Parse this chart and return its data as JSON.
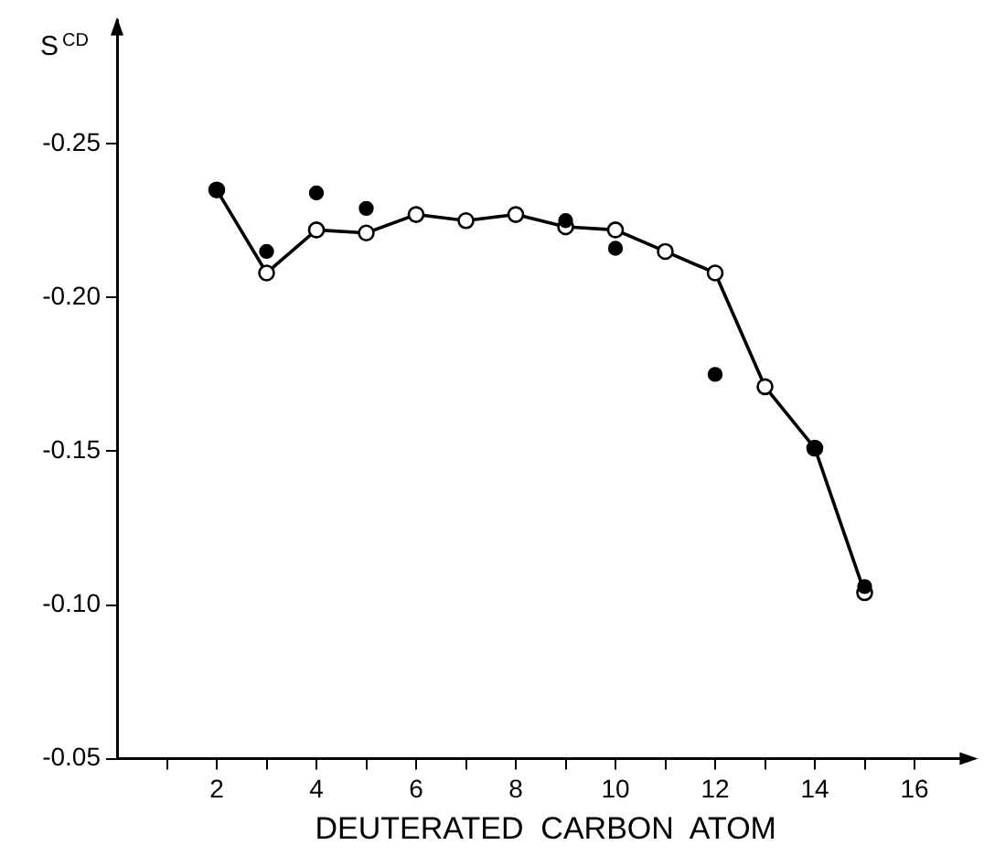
{
  "chart_data": {
    "type": "line",
    "xlabel": "DEUTERATED  CARBON  ATOM",
    "ylabel": "S$^{CD}$",
    "xlim": [
      0,
      17.2
    ],
    "xticks": [
      {
        "value": 1,
        "label": null
      },
      2,
      {
        "value": 3,
        "label": null
      },
      4,
      {
        "value": 5,
        "label": null
      },
      6,
      {
        "value": 7,
        "label": null
      },
      8,
      {
        "value": 9,
        "label": null
      },
      10,
      {
        "value": 11,
        "label": null
      },
      12,
      {
        "value": 13,
        "label": null
      },
      14,
      {
        "value": 15,
        "label": null
      },
      16
    ],
    "ylim": [
      -0.05,
      -0.29
    ],
    "yticks": [
      -0.25,
      {
        "value": -0.2,
        "label": "-0.20"
      },
      -0.15,
      {
        "value": -0.1,
        "label": "-0.10"
      },
      -0.05
    ],
    "grid": false,
    "legend": false,
    "marker": "circle",
    "line_style": "solid",
    "series": [
      {
        "type": "line",
        "color": "#000000",
        "x": [
          2,
          3,
          4,
          5,
          6,
          7,
          8,
          9,
          10,
          11,
          12,
          13,
          14,
          15
        ],
        "values": [
          -0.235,
          -0.208,
          -0.222,
          -0.221,
          -0.227,
          -0.225,
          -0.227,
          -0.223,
          -0.222,
          -0.215,
          -0.208,
          -0.171,
          -0.151,
          -0.104
        ]
      },
      {
        "type": "scatter",
        "color": "#000000",
        "x": [
          2,
          3,
          4,
          5,
          9,
          10,
          12,
          14,
          15
        ],
        "values": [
          -0.235,
          -0.215,
          -0.234,
          -0.229,
          -0.225,
          -0.216,
          -0.175,
          -0.151,
          -0.106
        ]
      }
    ]
  }
}
